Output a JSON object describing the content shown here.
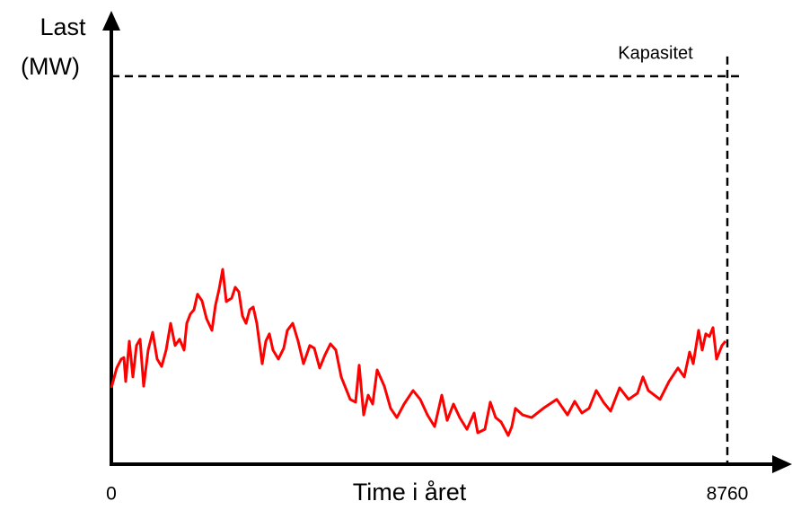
{
  "chart_data": {
    "type": "line",
    "y_label": [
      "Last",
      "(MW)"
    ],
    "x_label": "Time i året",
    "annotation": "Kapasitet",
    "capacity": 100,
    "xlim": [
      0,
      8760
    ],
    "xticks": [
      0,
      8760
    ],
    "ylim": [
      0,
      115
    ],
    "series": [
      {
        "color": "#ff0000",
        "x": [
          0,
          77,
          140,
          179,
          204,
          255,
          306,
          358,
          409,
          460,
          524,
          587,
          651,
          715,
          779,
          843,
          907,
          971,
          1034,
          1073,
          1124,
          1175,
          1226,
          1290,
          1354,
          1430,
          1481,
          1532,
          1583,
          1635,
          1711,
          1762,
          1813,
          1864,
          1915,
          1967,
          2018,
          2069,
          2145,
          2196,
          2247,
          2299,
          2375,
          2452,
          2503,
          2579,
          2656,
          2733,
          2822,
          2886,
          2963,
          3039,
          3116,
          3192,
          3269,
          3397,
          3473,
          3524,
          3588,
          3652,
          3716,
          3780,
          3882,
          3971,
          4061,
          4163,
          4291,
          4393,
          4495,
          4597,
          4699,
          4776,
          4865,
          4955,
          5057,
          5159,
          5210,
          5312,
          5389,
          5465,
          5542,
          5644,
          5695,
          5746,
          5849,
          5976,
          6142,
          6334,
          6487,
          6589,
          6691,
          6793,
          6896,
          6998,
          7100,
          7228,
          7355,
          7483,
          7560,
          7636,
          7802,
          7930,
          8058,
          8147,
          8224,
          8275,
          8351,
          8403,
          8454,
          8505,
          8556,
          8607,
          8684,
          8735
        ],
        "values": [
          19.7,
          24.8,
          27.1,
          27.5,
          21.3,
          31.7,
          22.5,
          30.6,
          32.2,
          20.1,
          29.4,
          34.0,
          27.1,
          25.2,
          29.4,
          36.3,
          30.6,
          32.2,
          29.4,
          36.3,
          38.7,
          39.8,
          43.8,
          42.1,
          37.5,
          34.5,
          41.0,
          45.1,
          50.2,
          41.9,
          42.8,
          45.6,
          44.4,
          38.2,
          36.3,
          39.8,
          40.5,
          36.3,
          25.9,
          31.7,
          33.6,
          29.4,
          27.1,
          29.9,
          34.5,
          36.3,
          31.7,
          25.9,
          30.6,
          29.9,
          24.8,
          28.2,
          31.0,
          29.4,
          22.5,
          16.7,
          16.0,
          25.5,
          12.7,
          17.8,
          15.5,
          24.3,
          20.1,
          14.4,
          12.0,
          15.5,
          19.0,
          16.7,
          12.7,
          9.7,
          17.8,
          11.3,
          15.5,
          12.0,
          9.0,
          13.2,
          8.1,
          9.0,
          16.0,
          12.0,
          10.9,
          7.4,
          9.7,
          14.4,
          12.7,
          12.0,
          14.4,
          16.7,
          12.7,
          16.2,
          13.2,
          14.4,
          19.0,
          16.0,
          13.7,
          19.7,
          16.7,
          18.3,
          22.5,
          19.0,
          16.7,
          21.3,
          24.8,
          22.5,
          28.9,
          25.9,
          34.5,
          29.4,
          33.6,
          32.9,
          35.2,
          27.1,
          30.6,
          31.7
        ]
      }
    ]
  }
}
